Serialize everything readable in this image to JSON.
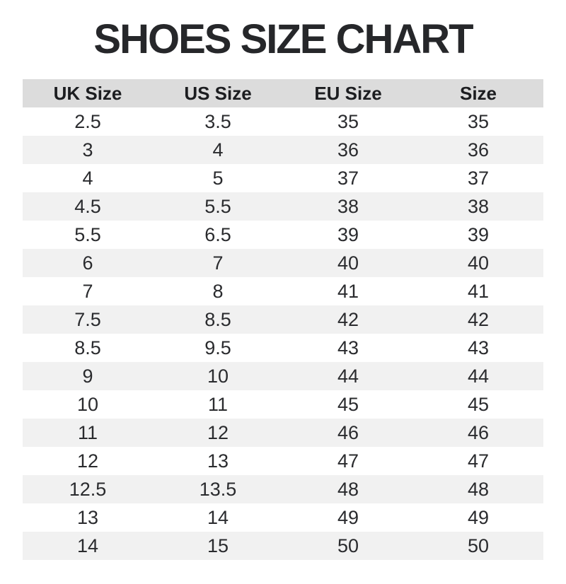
{
  "title": "SHOES SIZE CHART",
  "colors": {
    "title_text": "#26272a",
    "header_bg": "#dcdcdc",
    "stripe_bg": "#f1f1f1",
    "row_bg": "#ffffff",
    "cell_text": "#2a2b2e"
  },
  "table": {
    "headers": [
      "UK Size",
      "US Size",
      "EU Size",
      "Size"
    ],
    "rows": [
      [
        "2.5",
        "3.5",
        "35",
        "35"
      ],
      [
        "3",
        "4",
        "36",
        "36"
      ],
      [
        "4",
        "5",
        "37",
        "37"
      ],
      [
        "4.5",
        "5.5",
        "38",
        "38"
      ],
      [
        "5.5",
        "6.5",
        "39",
        "39"
      ],
      [
        "6",
        "7",
        "40",
        "40"
      ],
      [
        "7",
        "8",
        "41",
        "41"
      ],
      [
        "7.5",
        "8.5",
        "42",
        "42"
      ],
      [
        "8.5",
        "9.5",
        "43",
        "43"
      ],
      [
        "9",
        "10",
        "44",
        "44"
      ],
      [
        "10",
        "11",
        "45",
        "45"
      ],
      [
        "11",
        "12",
        "46",
        "46"
      ],
      [
        "12",
        "13",
        "47",
        "47"
      ],
      [
        "12.5",
        "13.5",
        "48",
        "48"
      ],
      [
        "13",
        "14",
        "49",
        "49"
      ],
      [
        "14",
        "15",
        "50",
        "50"
      ]
    ]
  },
  "chart_data": {
    "type": "table",
    "title": "SHOES SIZE CHART",
    "columns": [
      "UK Size",
      "US Size",
      "EU Size",
      "Size"
    ],
    "rows": [
      [
        2.5,
        3.5,
        35,
        35
      ],
      [
        3,
        4,
        36,
        36
      ],
      [
        4,
        5,
        37,
        37
      ],
      [
        4.5,
        5.5,
        38,
        38
      ],
      [
        5.5,
        6.5,
        39,
        39
      ],
      [
        6,
        7,
        40,
        40
      ],
      [
        7,
        8,
        41,
        41
      ],
      [
        7.5,
        8.5,
        42,
        42
      ],
      [
        8.5,
        9.5,
        43,
        43
      ],
      [
        9,
        10,
        44,
        44
      ],
      [
        10,
        11,
        45,
        45
      ],
      [
        11,
        12,
        46,
        46
      ],
      [
        12,
        13,
        47,
        47
      ],
      [
        12.5,
        13.5,
        48,
        48
      ],
      [
        13,
        14,
        49,
        49
      ],
      [
        14,
        15,
        50,
        50
      ]
    ],
    "layout": {
      "header_background": "#dcdcdc",
      "zebra_striping": true,
      "stripe_color": "#f1f1f1",
      "text_align": "center",
      "gridlines": false
    }
  }
}
